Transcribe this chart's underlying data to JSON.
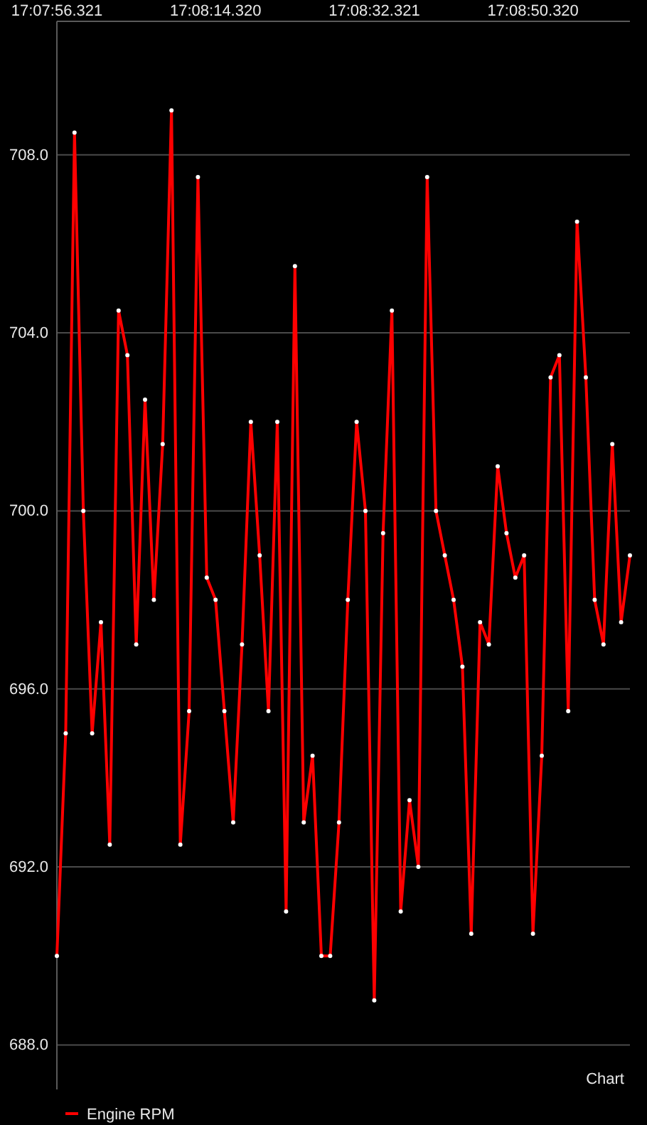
{
  "chart_data": {
    "type": "line",
    "categories": [
      "17:07:56.321",
      null,
      null,
      null,
      null,
      null,
      null,
      null,
      null,
      null,
      null,
      null,
      null,
      null,
      null,
      null,
      null,
      null,
      "17:08:14.320",
      null,
      null,
      null,
      null,
      null,
      null,
      null,
      null,
      null,
      null,
      null,
      null,
      null,
      null,
      null,
      null,
      null,
      "17:08:32.321",
      null,
      null,
      null,
      null,
      null,
      null,
      null,
      null,
      null,
      null,
      null,
      null,
      null,
      null,
      null,
      null,
      null,
      "17:08:50.320",
      null,
      null,
      null,
      null,
      null,
      null,
      null,
      null,
      null,
      null,
      null
    ],
    "series": [
      {
        "name": "Engine RPM",
        "color": "#ff0000",
        "values": [
          690.0,
          695.0,
          708.5,
          700.0,
          695.0,
          697.5,
          692.5,
          704.5,
          703.5,
          697.0,
          702.5,
          698.0,
          701.5,
          709.0,
          692.5,
          695.5,
          707.5,
          698.5,
          698.0,
          695.5,
          693.0,
          697.0,
          702.0,
          699.0,
          695.5,
          702.0,
          691.0,
          705.5,
          693.0,
          694.5,
          690.0,
          690.0,
          693.0,
          698.0,
          702.0,
          700.0,
          689.0,
          699.5,
          704.5,
          691.0,
          693.5,
          692.0,
          707.5,
          700.0,
          699.0,
          698.0,
          696.5,
          690.5,
          697.5,
          697.0,
          701.0,
          699.5,
          698.5,
          699.0,
          690.5,
          694.5,
          703.0,
          703.5,
          695.5,
          706.5,
          703.0,
          698.0,
          697.0,
          701.5,
          697.5,
          699.0
        ]
      }
    ],
    "ylim": [
      687,
      711
    ],
    "yticks": [
      {
        "value": 688,
        "label": "688.0"
      },
      {
        "value": 692,
        "label": "692.0"
      },
      {
        "value": 696,
        "label": "696.0"
      },
      {
        "value": 700,
        "label": "700.0"
      },
      {
        "value": 704,
        "label": "704.0"
      },
      {
        "value": 708,
        "label": "708.0"
      }
    ],
    "grid": "y",
    "legend": "bottom left",
    "marker": "circle",
    "annotations": [
      "Chart"
    ]
  }
}
